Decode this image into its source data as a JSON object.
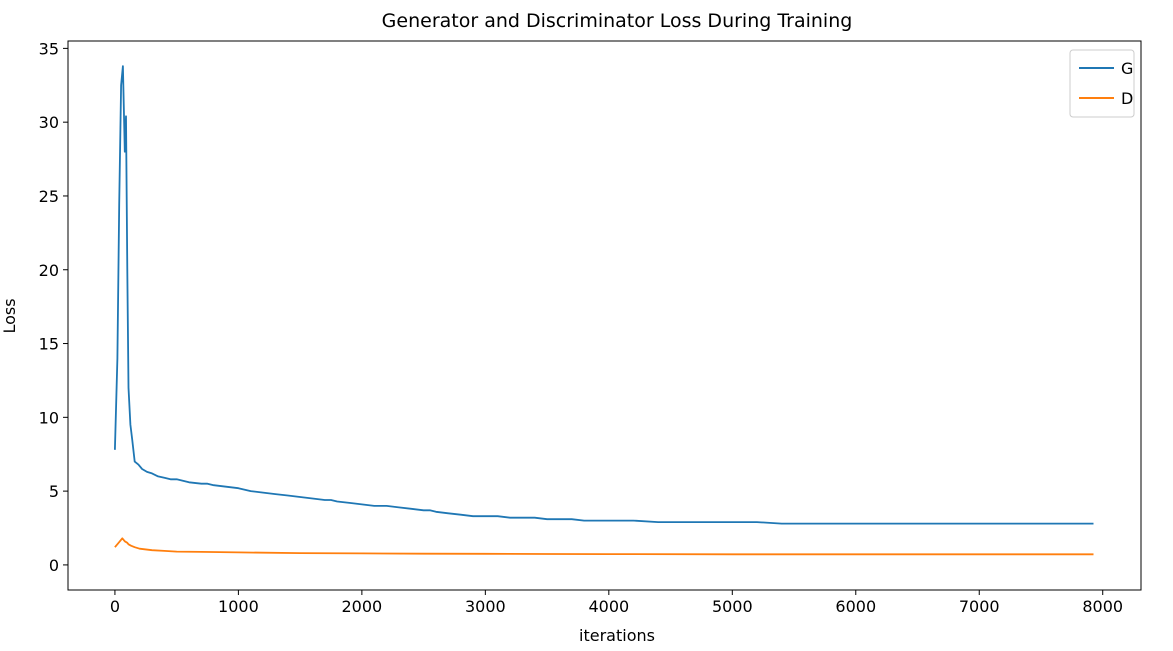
{
  "chart_data": {
    "type": "line",
    "title": "Generator and Discriminator Loss During Training",
    "xlabel": "iterations",
    "ylabel": "Loss",
    "xlim": [
      -380,
      8310
    ],
    "ylim": [
      -1.7,
      35.5
    ],
    "xticks": [
      0,
      1000,
      2000,
      3000,
      4000,
      5000,
      6000,
      7000,
      8000
    ],
    "yticks": [
      0,
      5,
      10,
      15,
      20,
      25,
      30,
      35
    ],
    "grid": false,
    "legend_position": "top-right",
    "series": [
      {
        "name": "G",
        "color": "#1f77b4",
        "x": [
          0,
          20,
          35,
          50,
          65,
          80,
          90,
          100,
          110,
          125,
          140,
          160,
          190,
          220,
          260,
          300,
          350,
          400,
          450,
          500,
          600,
          700,
          750,
          800,
          900,
          1000,
          1100,
          1200,
          1300,
          1400,
          1500,
          1600,
          1700,
          1750,
          1800,
          1900,
          2000,
          2100,
          2200,
          2300,
          2400,
          2500,
          2550,
          2600,
          2700,
          2800,
          2900,
          3000,
          3100,
          3200,
          3300,
          3400,
          3500,
          3600,
          3700,
          3800,
          3900,
          4000,
          4200,
          4400,
          4600,
          4800,
          5000,
          5200,
          5400,
          5500,
          5600,
          5800,
          6000,
          6200,
          6400,
          6600,
          6780,
          6800,
          7000,
          7200,
          7400,
          7600,
          7760,
          7800,
          7900,
          7925
        ],
        "values": [
          7.8,
          14.0,
          24.4,
          32.5,
          33.8,
          28.0,
          30.4,
          20.0,
          12.0,
          9.5,
          8.5,
          7.0,
          6.8,
          6.5,
          6.3,
          6.2,
          6.0,
          5.9,
          5.8,
          5.8,
          5.6,
          5.5,
          5.5,
          5.4,
          5.3,
          5.2,
          5.0,
          4.9,
          4.8,
          4.7,
          4.6,
          4.5,
          4.4,
          4.4,
          4.3,
          4.2,
          4.1,
          4.0,
          4.0,
          3.9,
          3.8,
          3.7,
          3.7,
          3.6,
          3.5,
          3.4,
          3.3,
          3.3,
          3.3,
          3.2,
          3.2,
          3.2,
          3.1,
          3.1,
          3.1,
          3.0,
          3.0,
          3.0,
          3.0,
          2.9,
          2.9,
          2.9,
          2.9,
          2.9,
          2.8,
          2.8,
          2.8,
          2.8,
          2.8,
          2.8,
          2.8,
          2.8,
          2.8,
          2.8,
          2.8,
          2.8,
          2.8,
          2.8,
          2.8,
          2.8,
          2.8,
          2.8
        ]
      },
      {
        "name": "D",
        "color": "#ff7f0e",
        "x": [
          0,
          30,
          60,
          80,
          100,
          110,
          130,
          160,
          200,
          300,
          400,
          500,
          700,
          1000,
          1500,
          2000,
          2500,
          3000,
          3500,
          4000,
          5000,
          6000,
          7000,
          7925
        ],
        "values": [
          1.2,
          1.5,
          1.8,
          1.6,
          1.5,
          1.4,
          1.3,
          1.2,
          1.1,
          1.0,
          0.95,
          0.9,
          0.88,
          0.85,
          0.8,
          0.78,
          0.76,
          0.75,
          0.74,
          0.73,
          0.72,
          0.72,
          0.72,
          0.72
        ]
      }
    ]
  }
}
